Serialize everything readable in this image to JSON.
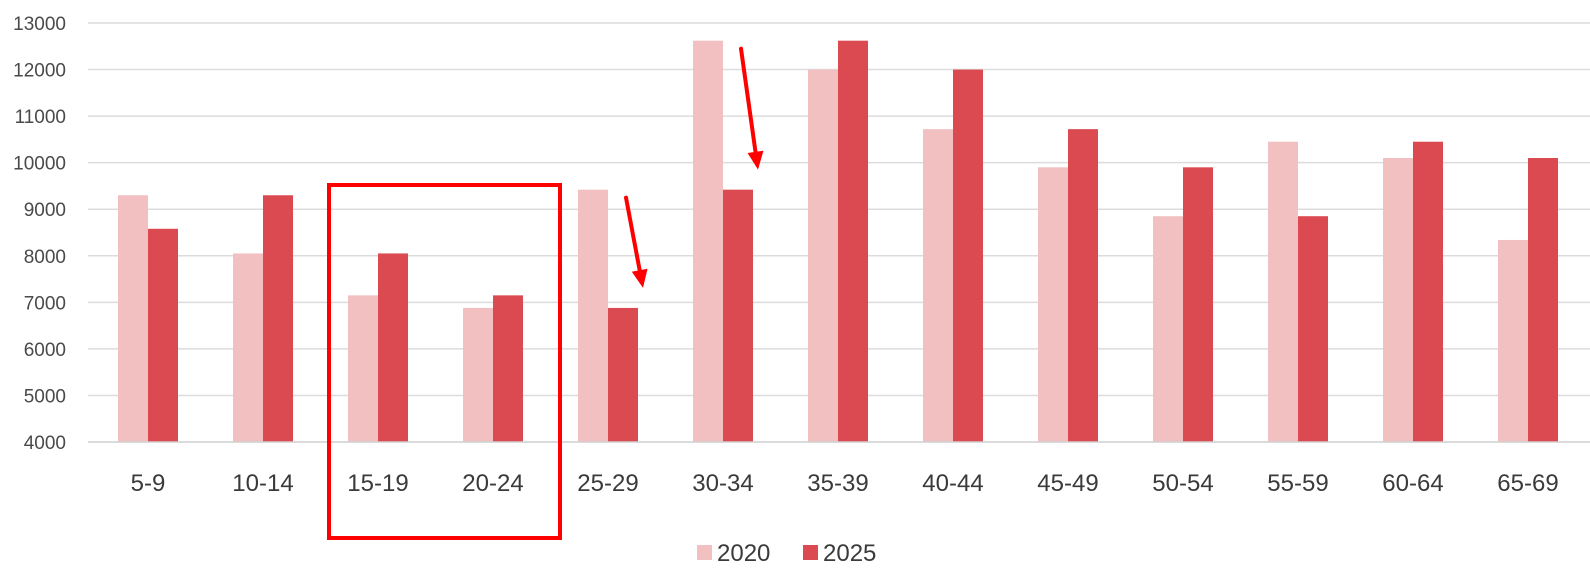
{
  "chart_data": {
    "type": "bar",
    "categories": [
      "5-9",
      "10-14",
      "15-19",
      "20-24",
      "25-29",
      "30-34",
      "35-39",
      "40-44",
      "45-49",
      "50-54",
      "55-59",
      "60-64",
      "65-69"
    ],
    "series": [
      {
        "name": "2020",
        "color": "#f2c0c1",
        "values": [
          9300,
          8050,
          7150,
          6880,
          9420,
          12620,
          12000,
          10720,
          9900,
          8850,
          10450,
          10100,
          8340
        ]
      },
      {
        "name": "2025",
        "color": "#da4a50",
        "values": [
          8580,
          9300,
          8050,
          7150,
          6880,
          9420,
          12620,
          12000,
          10720,
          9900,
          8850,
          10450,
          10100
        ]
      }
    ],
    "ylim": [
      4000,
      13000
    ],
    "yticks": [
      4000,
      5000,
      6000,
      7000,
      8000,
      9000,
      10000,
      11000,
      12000,
      13000
    ],
    "grid": true,
    "legend_position": "bottom",
    "annotations": [
      {
        "type": "highlight-box",
        "categories": [
          "15-19",
          "20-24"
        ],
        "color": "#ff0000"
      },
      {
        "type": "arrow",
        "category": "25-29",
        "direction": "down",
        "color": "#ff0000"
      },
      {
        "type": "arrow",
        "category": "30-34",
        "direction": "down",
        "color": "#ff0000"
      }
    ]
  }
}
